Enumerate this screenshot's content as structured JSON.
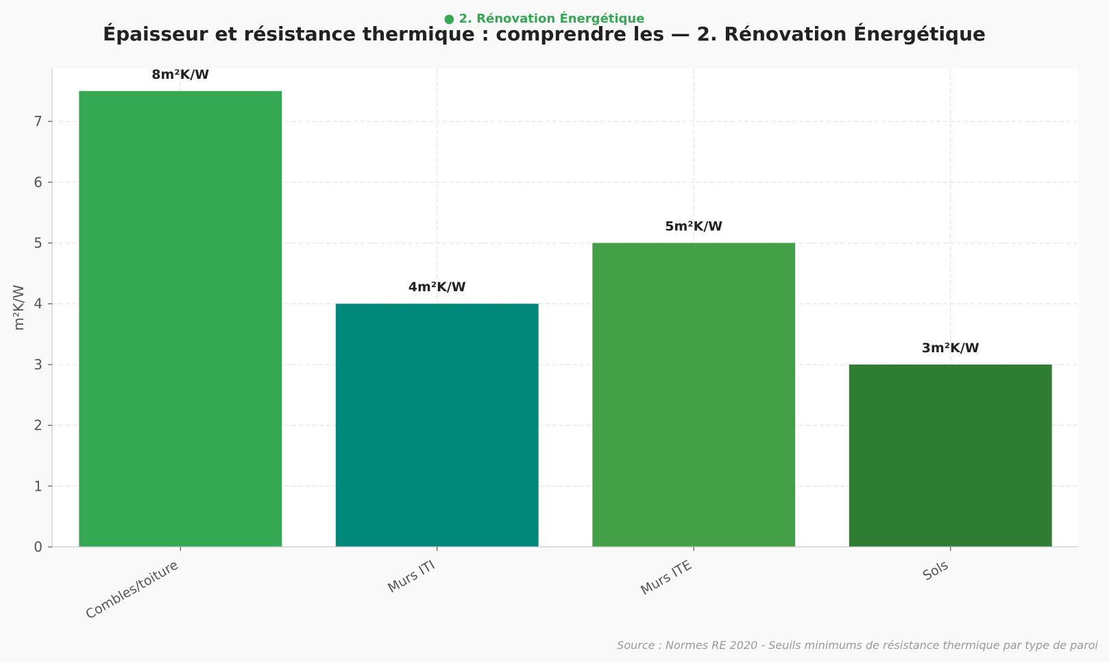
{
  "header": {
    "tag": "● 2. Rénovation Énergétique",
    "tag_color": "#34a853"
  },
  "footer": {
    "source": "Source : Normes RE 2020 - Seuils minimums de résistance thermique par type de paroi"
  },
  "chart_data": {
    "type": "bar",
    "title": "Épaisseur et résistance thermique : comprendre les — 2. Rénovation Énergétique",
    "xlabel": "",
    "ylabel": "m²K/W",
    "categories": [
      "Combles/toiture",
      "Murs ITI",
      "Murs ITE",
      "Sols"
    ],
    "values": [
      7.5,
      4,
      5,
      3
    ],
    "data_labels": [
      "8m²K/W",
      "4m²K/W",
      "5m²K/W",
      "3m²K/W"
    ],
    "colors": [
      "#34a853",
      "#00897b",
      "#43a047",
      "#2e7d32"
    ],
    "ylim": [
      0,
      7.87
    ],
    "yticks": [
      0,
      1,
      2,
      3,
      4,
      5,
      6,
      7
    ],
    "grid": true,
    "legend": "none"
  }
}
